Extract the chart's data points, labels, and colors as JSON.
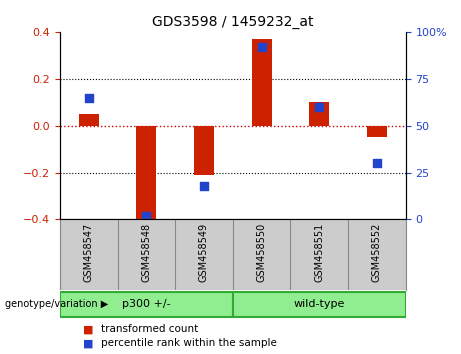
{
  "title": "GDS3598 / 1459232_at",
  "samples": [
    "GSM458547",
    "GSM458548",
    "GSM458549",
    "GSM458550",
    "GSM458551",
    "GSM458552"
  ],
  "bar_values": [
    0.05,
    -0.4,
    -0.21,
    0.37,
    0.1,
    -0.05
  ],
  "percentile_values": [
    0.65,
    0.02,
    0.18,
    0.92,
    0.6,
    0.3
  ],
  "ylim": [
    -0.4,
    0.4
  ],
  "yticks_left": [
    -0.4,
    -0.2,
    0.0,
    0.2,
    0.4
  ],
  "yticks_right_vals": [
    0,
    25,
    50,
    75,
    100
  ],
  "yticks_right_labels": [
    "0",
    "25",
    "50",
    "75",
    "100%"
  ],
  "bar_color": "#cc2200",
  "dot_color": "#2244cc",
  "zero_line_color": "#cc0000",
  "grid_color": "#000000",
  "group_border_color": "#33aa33",
  "group_color": "#90ee90",
  "background_plot": "#ffffff",
  "background_label": "#cccccc",
  "bar_width": 0.35,
  "dot_size": 30,
  "legend_red_label": "transformed count",
  "legend_blue_label": "percentile rank within the sample",
  "genotype_label": "genotype/variation"
}
